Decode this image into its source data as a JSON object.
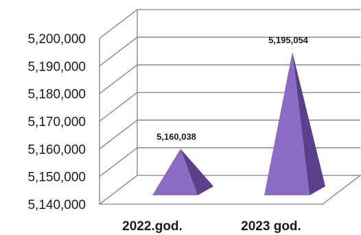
{
  "chart_data": {
    "type": "bar",
    "categories": [
      "2022.god.",
      "2023 god."
    ],
    "values": [
      5160038,
      5195054
    ],
    "data_labels": [
      "5,160,038",
      "5,195,054"
    ],
    "yticks": [
      "5,140,000",
      "5,150,000",
      "5,160,000",
      "5,170,000",
      "5,180,000",
      "5,190,000",
      "5,200,000"
    ],
    "ylim": [
      5140000,
      5200000
    ],
    "grid": true,
    "bar_shape": "pyramid-3d",
    "colors": {
      "front": "#8b6bc4",
      "side": "#5a3f8a",
      "grid": "#7f7f7f"
    }
  }
}
